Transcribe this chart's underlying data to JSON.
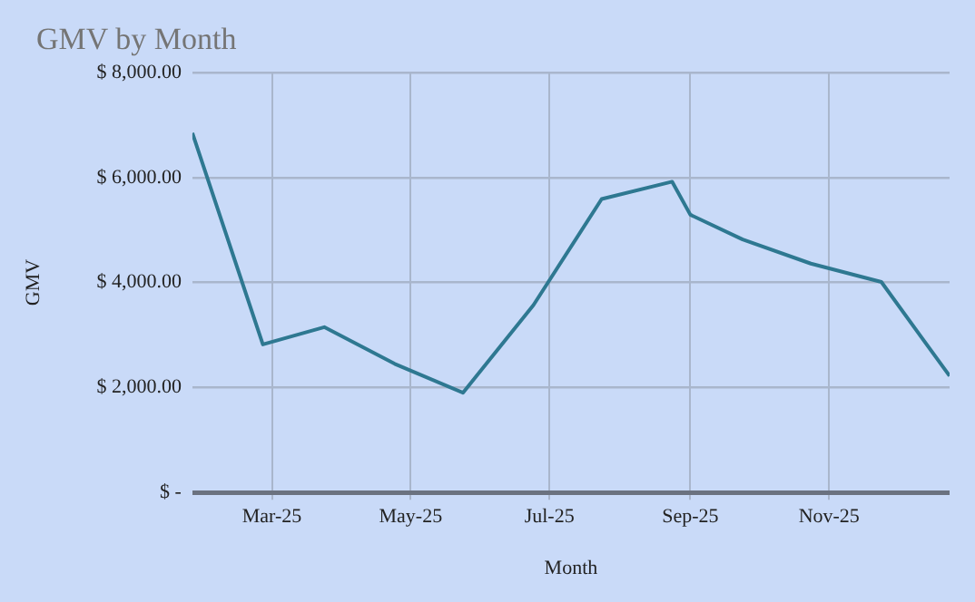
{
  "chart_data": {
    "type": "line",
    "title": "GMV by Month",
    "xlabel": "Month",
    "ylabel": "GMV",
    "x": [
      "2025-01-25",
      "2025-02-25",
      "2025-03-24",
      "2025-04-24",
      "2025-05-24",
      "2025-06-24",
      "2025-07-24",
      "2025-08-24",
      "2025-09-01",
      "2025-09-24",
      "2025-10-24",
      "2025-11-24",
      "2025-12-24"
    ],
    "series": [
      {
        "color": "#2e7891",
        "values": [
          6850,
          2820,
          3150,
          2450,
          1900,
          3570,
          5590,
          5920,
          5290,
          4820,
          4360,
          4010,
          2220
        ]
      }
    ],
    "xlim": [
      "2025-01-25",
      "2025-12-24"
    ],
    "xticks": [
      {
        "value": "2025-03-01",
        "label": "Mar-25"
      },
      {
        "value": "2025-05-01",
        "label": "May-25"
      },
      {
        "value": "2025-07-01",
        "label": "Jul-25"
      },
      {
        "value": "2025-09-01",
        "label": "Sep-25"
      },
      {
        "value": "2025-11-01",
        "label": "Nov-25"
      }
    ],
    "ylim": [
      0,
      8000
    ],
    "yticks": [
      {
        "value": 0,
        "label": "$ -"
      },
      {
        "value": 2000,
        "label": "$ 2,000.00"
      },
      {
        "value": 4000,
        "label": "$ 4,000.00"
      },
      {
        "value": 6000,
        "label": "$ 6,000.00"
      },
      {
        "value": 8000,
        "label": "$ 8,000.00"
      }
    ],
    "grid": true,
    "legend": false,
    "marker": "none",
    "line_style": "solid"
  }
}
